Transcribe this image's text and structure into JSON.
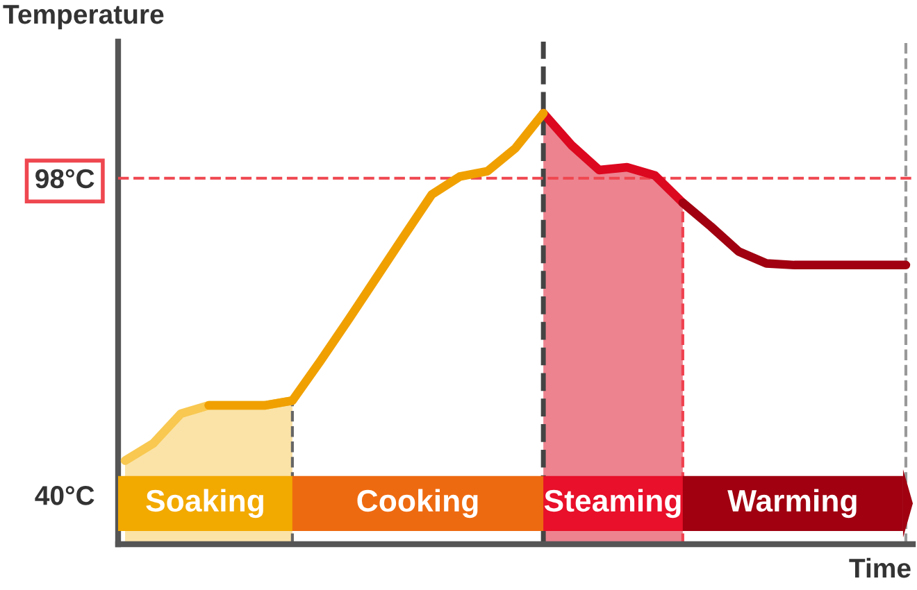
{
  "chart_data": {
    "type": "line",
    "ylabel": "Temperature",
    "xlabel": "Time",
    "categories": [
      null,
      null,
      null,
      null,
      null,
      null,
      null,
      null,
      null,
      null,
      null,
      null,
      null,
      null,
      null,
      null,
      null,
      null,
      null,
      null,
      null,
      null,
      null,
      null,
      null,
      null,
      null,
      null,
      null
    ],
    "ylim": [
      31,
      123
    ],
    "yticks": [
      {
        "value": 40,
        "label": "40°C"
      },
      {
        "value": 98,
        "label": "98°C"
      }
    ],
    "series": [
      {
        "type": "area",
        "color": "#f8c850",
        "values": [
          46.3,
          49.4,
          54.9,
          56.4,
          56.4,
          56.4,
          57.3,
          null,
          null,
          null,
          null,
          null,
          null,
          null,
          null,
          null,
          null,
          null,
          null,
          null,
          null,
          null,
          null,
          null,
          null,
          null,
          null,
          null,
          null
        ]
      },
      {
        "color": "#f0a000",
        "values": [
          null,
          null,
          null,
          56.4,
          56.4,
          56.4,
          57.3,
          64.5,
          72.0,
          79.7,
          87.4,
          95.0,
          98.3,
          99.3,
          103.5,
          109.9,
          null,
          null,
          null,
          null,
          null,
          null,
          null,
          null,
          null,
          null,
          null,
          null,
          null
        ]
      },
      {
        "type": "area",
        "color": "#dc0820",
        "values": [
          null,
          null,
          null,
          null,
          null,
          null,
          null,
          null,
          null,
          null,
          null,
          null,
          null,
          null,
          null,
          109.9,
          104.1,
          99.5,
          100,
          98.5,
          93.5,
          null,
          null,
          null,
          null,
          null,
          null,
          null,
          null
        ]
      },
      {
        "color": "#a00010",
        "values": [
          null,
          null,
          null,
          null,
          null,
          null,
          null,
          null,
          null,
          null,
          null,
          null,
          null,
          null,
          null,
          null,
          null,
          null,
          null,
          null,
          93.5,
          89.2,
          84.6,
          82.4,
          82.1,
          82.1,
          82.1,
          82.1,
          82.1
        ]
      }
    ],
    "ref_lines": [
      {
        "axis": "y",
        "value": 98,
        "color": "#ef4750",
        "line_style": "dashed"
      }
    ],
    "annotations": [
      "Soaking",
      "Cooking",
      "Steaming",
      "Warming"
    ],
    "grid": false,
    "legend": false,
    "tick_labels": "y"
  }
}
